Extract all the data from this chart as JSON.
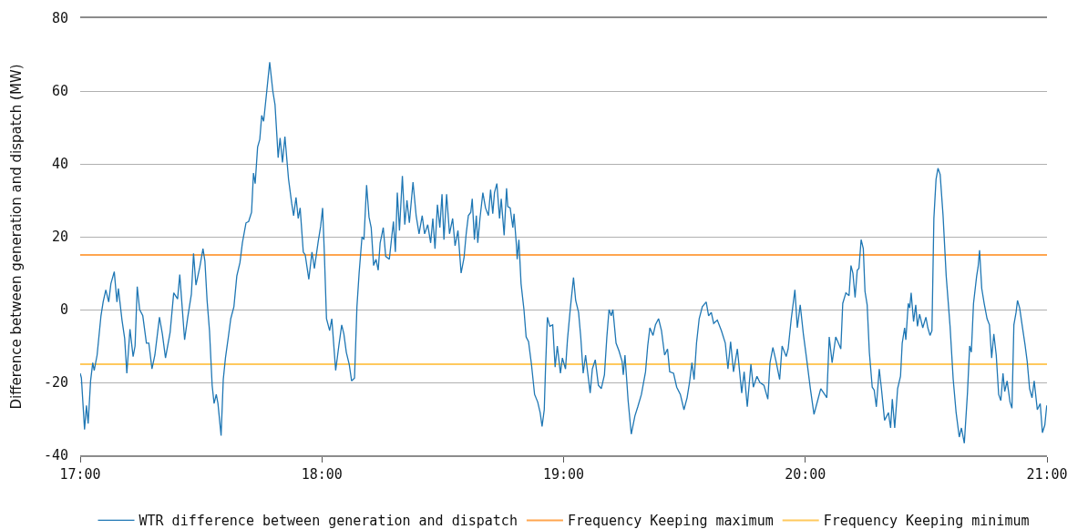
{
  "chart_data": {
    "type": "line",
    "ylabel": "Difference between generation and dispatch (MW)",
    "x": [
      17.0,
      17.005,
      17.018,
      17.026,
      17.033,
      17.043,
      17.052,
      17.058,
      17.07,
      17.086,
      17.095,
      17.106,
      17.118,
      17.127,
      17.141,
      17.152,
      17.158,
      17.173,
      17.184,
      17.193,
      17.206,
      17.219,
      17.227,
      17.236,
      17.246,
      17.259,
      17.274,
      17.284,
      17.297,
      17.309,
      17.328,
      17.34,
      17.353,
      17.372,
      17.387,
      17.403,
      17.412,
      17.432,
      17.445,
      17.46,
      17.469,
      17.479,
      17.495,
      17.508,
      17.516,
      17.525,
      17.535,
      17.546,
      17.554,
      17.563,
      17.57,
      17.583,
      17.592,
      17.601,
      17.613,
      17.623,
      17.636,
      17.648,
      17.661,
      17.671,
      17.686,
      17.697,
      17.709,
      17.717,
      17.724,
      17.734,
      17.743,
      17.751,
      17.759,
      17.772,
      17.784,
      17.797,
      17.806,
      17.814,
      17.819,
      17.827,
      17.837,
      17.847,
      17.862,
      17.875,
      17.883,
      17.893,
      17.902,
      17.91,
      17.923,
      17.931,
      17.946,
      17.959,
      17.969,
      17.985,
      17.995,
      18.003,
      18.01,
      18.019,
      18.032,
      18.041,
      18.057,
      18.07,
      18.082,
      18.091,
      18.101,
      18.113,
      18.123,
      18.135,
      18.145,
      18.154,
      18.166,
      18.174,
      18.185,
      18.195,
      18.204,
      18.214,
      18.224,
      18.233,
      18.241,
      18.254,
      18.264,
      18.279,
      18.296,
      18.304,
      18.312,
      18.321,
      18.333,
      18.343,
      18.352,
      18.362,
      18.377,
      18.39,
      18.402,
      18.415,
      18.425,
      18.438,
      18.45,
      18.459,
      18.468,
      18.478,
      18.488,
      18.497,
      18.505,
      18.516,
      18.528,
      18.541,
      18.551,
      18.563,
      18.576,
      18.588,
      18.597,
      18.606,
      18.616,
      18.622,
      18.631,
      18.639,
      18.645,
      18.654,
      18.666,
      18.677,
      18.689,
      18.698,
      18.707,
      18.714,
      18.724,
      18.735,
      18.742,
      18.754,
      18.764,
      18.769,
      18.779,
      18.79,
      18.795,
      18.805,
      18.808,
      18.815,
      18.824,
      18.836,
      18.845,
      18.855,
      18.867,
      18.88,
      18.893,
      18.903,
      18.911,
      18.92,
      18.925,
      18.933,
      18.943,
      18.955,
      18.965,
      18.974,
      18.987,
      18.995,
      19.008,
      19.016,
      19.028,
      19.041,
      19.05,
      19.062,
      19.071,
      19.081,
      19.091,
      19.1,
      19.11,
      19.119,
      19.131,
      19.144,
      19.156,
      19.169,
      19.179,
      19.188,
      19.197,
      19.204,
      19.217,
      19.229,
      19.242,
      19.247,
      19.254,
      19.267,
      19.28,
      19.295,
      19.307,
      19.322,
      19.339,
      19.348,
      19.357,
      19.37,
      19.38,
      19.393,
      19.405,
      19.418,
      19.43,
      19.439,
      19.455,
      19.468,
      19.483,
      19.498,
      19.511,
      19.521,
      19.531,
      19.54,
      19.55,
      19.561,
      19.574,
      19.59,
      19.6,
      19.611,
      19.621,
      19.636,
      19.653,
      19.669,
      19.68,
      19.691,
      19.703,
      19.719,
      19.737,
      19.747,
      19.76,
      19.775,
      19.785,
      19.8,
      19.812,
      19.829,
      19.845,
      19.854,
      19.866,
      19.879,
      19.894,
      19.904,
      19.921,
      19.929,
      19.942,
      19.957,
      19.967,
      19.979,
      19.992,
      20.005,
      20.021,
      20.036,
      20.051,
      20.064,
      20.08,
      20.089,
      20.099,
      20.111,
      20.126,
      20.137,
      20.147,
      20.155,
      20.168,
      20.181,
      20.189,
      20.197,
      20.206,
      20.215,
      20.222,
      20.231,
      20.24,
      20.247,
      20.256,
      20.265,
      20.277,
      20.285,
      20.294,
      20.306,
      20.315,
      20.328,
      20.344,
      20.353,
      20.36,
      20.37,
      20.382,
      20.394,
      20.401,
      20.411,
      20.416,
      20.426,
      20.432,
      20.438,
      20.448,
      20.457,
      20.464,
      20.473,
      20.486,
      20.499,
      20.507,
      20.516,
      20.524,
      20.532,
      20.541,
      20.549,
      20.558,
      20.57,
      20.583,
      20.599,
      20.612,
      20.624,
      20.637,
      20.646,
      20.658,
      20.671,
      20.68,
      20.687,
      20.696,
      20.709,
      20.715,
      20.721,
      20.73,
      20.74,
      20.752,
      20.762,
      20.771,
      20.78,
      20.79,
      20.8,
      20.809,
      20.818,
      20.825,
      20.835,
      20.847,
      20.855,
      20.863,
      20.872,
      20.878,
      20.887,
      20.897,
      20.909,
      20.918,
      20.928,
      20.938,
      20.947,
      20.96,
      20.972,
      20.981,
      20.991,
      20.999
    ],
    "series": [
      {
        "name": "WTR difference between generation and dispatch",
        "color": "#1f77b4",
        "values": [
          -17.5,
          -18.8,
          -32.9,
          -26.3,
          -31.3,
          -19.6,
          -14.6,
          -16.7,
          -12.5,
          -1.7,
          2.1,
          5.4,
          2.1,
          7.1,
          10.4,
          2.1,
          5.8,
          -2.9,
          -7.9,
          -17.5,
          -5.4,
          -12.9,
          -10,
          6.3,
          0,
          -1.7,
          -9.2,
          -9.2,
          -16.3,
          -12.5,
          -2.1,
          -6.7,
          -13.3,
          -6.3,
          4.6,
          2.9,
          9.6,
          -8.3,
          -2.1,
          4.2,
          15.4,
          6.7,
          11.7,
          16.7,
          13.3,
          2.5,
          -5.8,
          -20.8,
          -25.8,
          -23.3,
          -25.8,
          -34.6,
          -19.2,
          -13.3,
          -7.5,
          -2.5,
          0.8,
          9.2,
          12.9,
          18.3,
          23.8,
          24.2,
          26.7,
          37.5,
          34.6,
          44.6,
          46.7,
          53.3,
          51.7,
          60,
          67.9,
          60,
          56.3,
          47.5,
          41.7,
          47.1,
          40.4,
          47.5,
          35.8,
          29.2,
          25.8,
          30.8,
          25,
          27.9,
          15.8,
          15,
          8.3,
          15.8,
          11.3,
          18.8,
          22.9,
          27.9,
          15.8,
          -2.5,
          -5.8,
          -2.5,
          -16.7,
          -10,
          -4.2,
          -6.7,
          -11.7,
          -15,
          -19.6,
          -18.8,
          0.8,
          10,
          20,
          19.2,
          34.2,
          25.4,
          22.5,
          12.1,
          13.8,
          10.8,
          18.3,
          22.5,
          14.6,
          13.8,
          24.2,
          15.8,
          32.1,
          21.7,
          36.7,
          23.3,
          30,
          23.8,
          35,
          25.8,
          20.8,
          25.8,
          20.8,
          23.3,
          18.3,
          25,
          16.7,
          28.8,
          22.5,
          31.7,
          19.2,
          31.7,
          20.8,
          25,
          17.5,
          21.7,
          10,
          14.2,
          20.8,
          25.8,
          26.7,
          30.4,
          19.2,
          25.8,
          18.3,
          25,
          32.1,
          27.9,
          25.8,
          32.9,
          26.3,
          32.1,
          34.6,
          25,
          30.4,
          20.4,
          33.3,
          28.3,
          27.9,
          22.5,
          26.3,
          17.5,
          13.8,
          19.2,
          7.1,
          0,
          -7.5,
          -8.8,
          -15,
          -23.3,
          -25.4,
          -28.3,
          -32.1,
          -27.5,
          -16.7,
          -2.1,
          -4.6,
          -4.2,
          -15.8,
          -10,
          -17.5,
          -13.3,
          -16.3,
          -8.3,
          0.4,
          8.8,
          2.5,
          -0.8,
          -7.5,
          -17.5,
          -12.5,
          -17.5,
          -22.9,
          -16.3,
          -13.8,
          -20.8,
          -21.7,
          -17.9,
          -7.5,
          0,
          -1.7,
          0,
          -9.2,
          -11.3,
          -14.2,
          -17.9,
          -12.5,
          -25,
          -34.2,
          -29.2,
          -26.7,
          -23.3,
          -17.1,
          -10,
          -5,
          -7.1,
          -4.2,
          -2.5,
          -5.8,
          -12.5,
          -10.8,
          -17.1,
          -17.5,
          -21.3,
          -23.3,
          -27.5,
          -24.2,
          -20,
          -14.6,
          -19.2,
          -9.2,
          -2.5,
          0.8,
          2.1,
          -1.7,
          -0.8,
          -3.8,
          -2.9,
          -5.8,
          -9.2,
          -16.3,
          -8.8,
          -17.1,
          -10.8,
          -22.9,
          -17.1,
          -26.7,
          -15,
          -21.3,
          -18.3,
          -20,
          -20.8,
          -24.6,
          -14.6,
          -10.4,
          -14.2,
          -19.2,
          -10,
          -12.9,
          -10.8,
          -2.5,
          5.4,
          -5,
          1.3,
          -6.7,
          -13.3,
          -21.7,
          -28.8,
          -25,
          -21.7,
          -23.3,
          -24.2,
          -7.5,
          -14.6,
          -7.5,
          -9.2,
          -10.8,
          1.7,
          4.6,
          3.8,
          12.1,
          10,
          3.3,
          10.8,
          11.3,
          19.2,
          16.7,
          5,
          1.3,
          -11.7,
          -21.3,
          -22.1,
          -26.7,
          -16.3,
          -21.7,
          -30.4,
          -28.3,
          -32.5,
          -24.6,
          -32.5,
          -21.7,
          -18.3,
          -9.2,
          -5,
          -8.3,
          1.7,
          0.4,
          4.6,
          -3.3,
          1.3,
          -4.6,
          -1.3,
          -5,
          -2.1,
          -5,
          -7.1,
          -5.8,
          25,
          35.8,
          38.8,
          37.1,
          25.8,
          9.2,
          -4.6,
          -19.2,
          -28.3,
          -35,
          -32.5,
          -36.7,
          -22.9,
          -10,
          -11.7,
          1.7,
          9.2,
          11.7,
          16.3,
          5.8,
          1.7,
          -2.5,
          -4.2,
          -13.3,
          -6.7,
          -12.5,
          -23.3,
          -25,
          -17.5,
          -22.5,
          -19.6,
          -25.4,
          -27.1,
          -4.2,
          -0.8,
          2.5,
          0.4,
          -4.2,
          -9.6,
          -14.2,
          -21.7,
          -24.2,
          -19.6,
          -27.5,
          -25.8,
          -33.8,
          -31.7,
          -26.3
        ]
      }
    ],
    "ref_lines": [
      {
        "axis": "y",
        "value": 15,
        "label": "Frequency Keeping maximum",
        "color": "#ffa54f"
      },
      {
        "axis": "y",
        "value": -15,
        "label": "Frequency Keeping minimum",
        "color": "#ffc95e"
      }
    ],
    "xlim": [
      17,
      21
    ],
    "xticks": [
      {
        "value": 17,
        "label": "17:00"
      },
      {
        "value": 18,
        "label": "18:00"
      },
      {
        "value": 19,
        "label": "19:00"
      },
      {
        "value": 20,
        "label": "20:00"
      },
      {
        "value": 21,
        "label": "21:00"
      }
    ],
    "ylim": [
      -40,
      80
    ],
    "yticks": [
      -40,
      -20,
      0,
      20,
      40,
      60,
      80
    ],
    "grid": "y",
    "legend": "bottom"
  }
}
